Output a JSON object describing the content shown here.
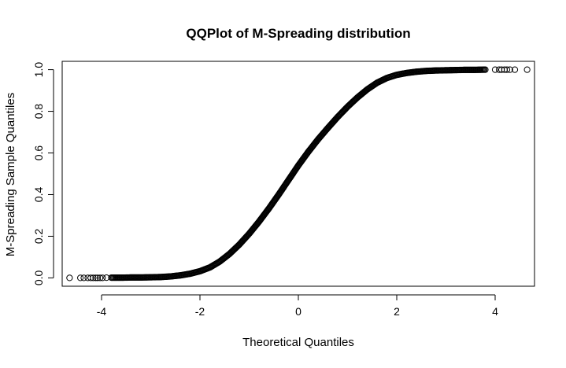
{
  "chart_data": {
    "type": "scatter",
    "title": "QQPlot of M-Spreading distribution",
    "xlabel": "Theoretical Quantiles",
    "ylabel": "M-Spreading Sample Quantiles",
    "xlim": [
      -4.8,
      4.8
    ],
    "ylim": [
      -0.04,
      1.04
    ],
    "x_ticks": [
      -4,
      -2,
      0,
      2,
      4
    ],
    "x_tick_labels": [
      "-4",
      "-2",
      "0",
      "2",
      "4"
    ],
    "y_ticks": [
      0.0,
      0.2,
      0.4,
      0.6,
      0.8,
      1.0
    ],
    "y_tick_labels": [
      "0.0",
      "0.2",
      "0.4",
      "0.6",
      "0.8",
      "1.0"
    ],
    "grid": false,
    "legend": "none",
    "marker": "open-circle",
    "marker_color": "#000000",
    "series": [
      {
        "points": [
          [
            -4.65,
            0.0
          ],
          [
            -4.43,
            0.0
          ],
          [
            -4.36,
            0.0
          ],
          [
            -4.28,
            0.0
          ],
          [
            -4.22,
            0.0
          ],
          [
            -4.17,
            0.0
          ],
          [
            -4.12,
            0.0
          ],
          [
            -4.08,
            0.0
          ],
          [
            -4.03,
            0.0
          ],
          [
            -3.98,
            0.0
          ],
          [
            -3.9,
            0.001
          ],
          [
            -3.8,
            0.001
          ],
          [
            -3.6,
            0.001
          ],
          [
            -3.4,
            0.002
          ],
          [
            -3.2,
            0.002
          ],
          [
            -3.0,
            0.003
          ],
          [
            -2.8,
            0.004
          ],
          [
            -2.6,
            0.007
          ],
          [
            -2.4,
            0.012
          ],
          [
            -2.2,
            0.02
          ],
          [
            -2.0,
            0.032
          ],
          [
            -1.8,
            0.05
          ],
          [
            -1.6,
            0.078
          ],
          [
            -1.4,
            0.115
          ],
          [
            -1.2,
            0.16
          ],
          [
            -1.0,
            0.212
          ],
          [
            -0.8,
            0.27
          ],
          [
            -0.6,
            0.333
          ],
          [
            -0.4,
            0.4
          ],
          [
            -0.2,
            0.47
          ],
          [
            0.0,
            0.54
          ],
          [
            0.2,
            0.605
          ],
          [
            0.4,
            0.665
          ],
          [
            0.6,
            0.72
          ],
          [
            0.8,
            0.773
          ],
          [
            1.0,
            0.822
          ],
          [
            1.2,
            0.866
          ],
          [
            1.4,
            0.905
          ],
          [
            1.6,
            0.937
          ],
          [
            1.8,
            0.96
          ],
          [
            2.0,
            0.975
          ],
          [
            2.2,
            0.984
          ],
          [
            2.4,
            0.99
          ],
          [
            2.6,
            0.994
          ],
          [
            2.8,
            0.996
          ],
          [
            3.0,
            0.997
          ],
          [
            3.2,
            0.998
          ],
          [
            3.4,
            0.999
          ],
          [
            3.6,
            0.999
          ],
          [
            3.8,
            1.0
          ],
          [
            4.0,
            1.0
          ],
          [
            4.08,
            1.0
          ],
          [
            4.13,
            1.0
          ],
          [
            4.19,
            1.0
          ],
          [
            4.24,
            1.0
          ],
          [
            4.3,
            1.0
          ],
          [
            4.4,
            1.0
          ],
          [
            4.65,
            1.0
          ]
        ]
      }
    ]
  }
}
